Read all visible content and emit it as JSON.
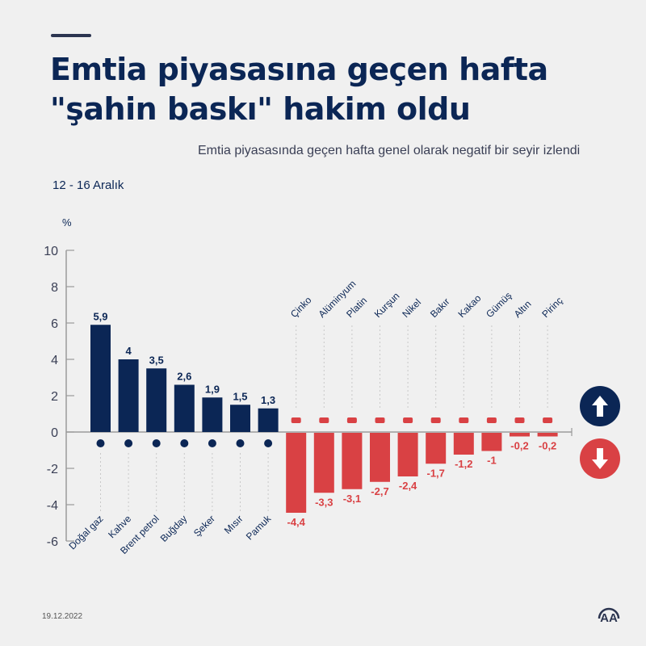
{
  "header": {
    "title_line1": "Emtia piyasasına geçen hafta",
    "title_line2": "\"şahin baskı\" hakim oldu",
    "subtitle": "Emtia piyasasında geçen hafta genel olarak negatif bir seyir izlendi",
    "date_range": "12 - 16 Aralık",
    "unit": "%"
  },
  "footer": {
    "date": "19.12.2022",
    "logo": "AA"
  },
  "colors": {
    "positive": "#0b2655",
    "negative": "#d94144",
    "axis": "#9a9a9a",
    "background": "#f0f0f0"
  },
  "legend": {
    "up_icon": "arrow-up-icon",
    "down_icon": "arrow-down-icon"
  },
  "chart_data": {
    "type": "bar",
    "title": "Emtia piyasasına geçen hafta \"şahin baskı\" hakim oldu",
    "subtitle": "12 - 16 Aralık",
    "xlabel": "",
    "ylabel": "%",
    "ylim": [
      -6,
      10
    ],
    "yticks": [
      10,
      8,
      6,
      4,
      2,
      0,
      -2,
      -4,
      -6
    ],
    "grid": false,
    "categories": [
      "Doğal gaz",
      "Kahve",
      "Brent petrol",
      "Buğday",
      "Şeker",
      "Mısır",
      "Pamuk",
      "Çinko",
      "Alüminyum",
      "Platin",
      "Kurşun",
      "Nikel",
      "Bakır",
      "Kakao",
      "Gümüş",
      "Altın",
      "Pirinç"
    ],
    "values": [
      5.9,
      4,
      3.5,
      2.6,
      1.9,
      1.5,
      1.3,
      -4.4,
      -3.3,
      -3.1,
      -2.7,
      -2.4,
      -1.7,
      -1.2,
      -1,
      -0.2,
      -0.2
    ],
    "value_labels": [
      "5,9",
      "4",
      "3,5",
      "2,6",
      "1,9",
      "1,5",
      "1,3",
      "-4,4",
      "-3,3",
      "-3,1",
      "-2,7",
      "-2,4",
      "-1,7",
      "-1,2",
      "-1",
      "-0,2",
      "-0,2"
    ],
    "icons": [
      "flame-icon",
      "coffee-bean-icon",
      "oil-barrel-icon",
      "wheat-icon",
      "sugar-sack-icon",
      "corn-icon",
      "cotton-icon",
      "metal-bars-icon",
      "metal-stack-icon",
      "metal-bars-icon",
      "metal-bars-icon",
      "metal-bars-icon",
      "metal-stack-icon",
      "cocoa-icon",
      "metal-bars-icon",
      "metal-bars-icon",
      "rice-sack-icon"
    ]
  }
}
